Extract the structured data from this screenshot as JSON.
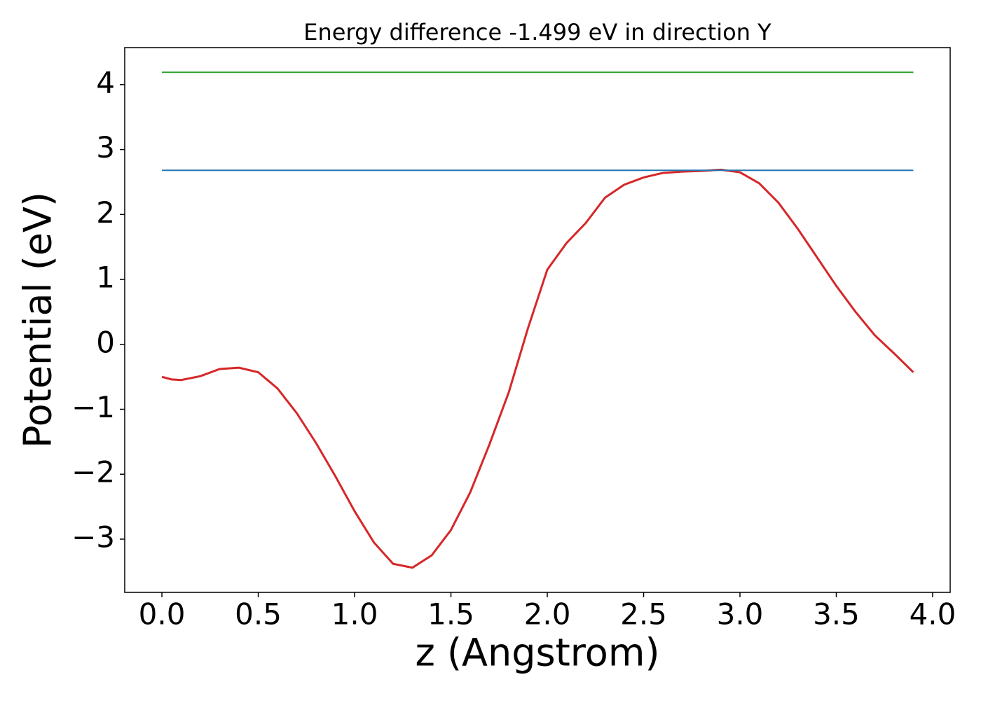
{
  "chart_data": {
    "type": "line",
    "title": "Energy difference -1.499 eV in direction Y",
    "xlabel": "z (Angstrom)",
    "ylabel": "Potential (eV)",
    "x": [
      0,
      0.05,
      0.1,
      0.2,
      0.3,
      0.4,
      0.5,
      0.6,
      0.7,
      0.8,
      0.9,
      1.0,
      1.1,
      1.2,
      1.3,
      1.4,
      1.5,
      1.6,
      1.7,
      1.8,
      1.9,
      2.0,
      2.1,
      2.2,
      2.3,
      2.4,
      2.5,
      2.6,
      2.7,
      2.8,
      2.9,
      3.0,
      3.1,
      3.2,
      3.3,
      3.4,
      3.5,
      3.6,
      3.7,
      3.8,
      3.9
    ],
    "series": [
      {
        "color": "#d62728",
        "values": [
          -0.5,
          -0.54,
          -0.55,
          -0.49,
          -0.38,
          -0.36,
          -0.43,
          -0.68,
          -1.06,
          -1.52,
          -2.03,
          -2.57,
          -3.05,
          -3.38,
          -3.44,
          -3.25,
          -2.86,
          -2.28,
          -1.54,
          -0.74,
          0.25,
          1.15,
          1.56,
          1.87,
          2.26,
          2.46,
          2.57,
          2.64,
          2.66,
          2.67,
          2.69,
          2.65,
          2.48,
          2.18,
          1.78,
          1.34,
          0.9,
          0.5,
          0.14,
          -0.14,
          -0.43
        ]
      },
      {
        "color": "#1f77b4",
        "values": [
          2.68,
          2.68,
          2.68,
          2.68,
          2.68,
          2.68,
          2.68,
          2.68,
          2.68,
          2.68,
          2.68,
          2.68,
          2.68,
          2.68,
          2.68,
          2.68,
          2.68,
          2.68,
          2.68,
          2.68,
          2.68,
          2.68,
          2.68,
          2.68,
          2.68,
          2.68,
          2.68,
          2.68,
          2.68,
          2.68,
          2.68,
          2.68,
          2.68,
          2.68,
          2.68,
          2.68,
          2.68,
          2.68,
          2.68,
          2.68,
          2.68
        ]
      },
      {
        "color": "#2ca02c",
        "values": [
          4.19,
          4.19,
          4.19,
          4.19,
          4.19,
          4.19,
          4.19,
          4.19,
          4.19,
          4.19,
          4.19,
          4.19,
          4.19,
          4.19,
          4.19,
          4.19,
          4.19,
          4.19,
          4.19,
          4.19,
          4.19,
          4.19,
          4.19,
          4.19,
          4.19,
          4.19,
          4.19,
          4.19,
          4.19,
          4.19,
          4.19,
          4.19,
          4.19,
          4.19,
          4.19,
          4.19,
          4.19,
          4.19,
          4.19,
          4.19,
          4.19
        ]
      }
    ],
    "xlim": [
      -0.193,
      4.091
    ],
    "ylim": [
      -3.82,
      4.57
    ],
    "xticks": [
      {
        "value": 0,
        "label": "0.0"
      },
      0.5,
      {
        "value": 1,
        "label": "1.0"
      },
      1.5,
      {
        "value": 2,
        "label": "2.0"
      },
      2.5,
      {
        "value": 3,
        "label": "3.0"
      },
      3.5,
      {
        "value": 4,
        "label": "4.0"
      }
    ],
    "yticks": [
      {
        "value": -3,
        "label": "−3"
      },
      {
        "value": -2,
        "label": "−2"
      },
      {
        "value": -1,
        "label": "−1"
      },
      0,
      1,
      2,
      3,
      4
    ],
    "grid": false
  }
}
